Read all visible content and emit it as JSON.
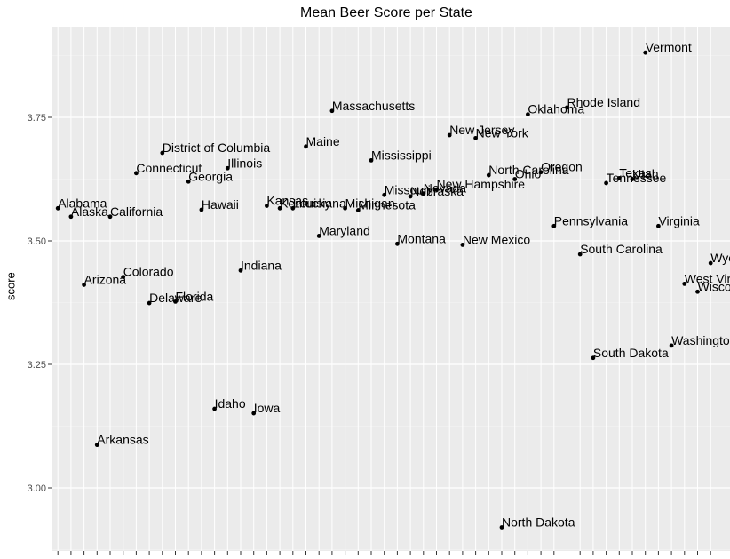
{
  "chart_data": {
    "type": "scatter",
    "title": "Mean Beer Score per State",
    "xlabel": "",
    "ylabel": "score",
    "ylim": [
      2.88,
      3.895
    ],
    "y_ticks": [
      3.0,
      3.25,
      3.5,
      3.75
    ],
    "y_tick_labels": [
      "3.00",
      "3.25",
      "3.50",
      "3.75"
    ],
    "grid": true,
    "background": "#ebebeb",
    "point_color": "#000000",
    "points": [
      {
        "label": "Alabama",
        "x": 1,
        "y": 3.566
      },
      {
        "label": "Alaska",
        "x": 2,
        "y": 3.549
      },
      {
        "label": "Arizona",
        "x": 3,
        "y": 3.411
      },
      {
        "label": "Arkansas",
        "x": 4,
        "y": 3.087
      },
      {
        "label": "California",
        "x": 5,
        "y": 3.549
      },
      {
        "label": "Colorado",
        "x": 6,
        "y": 3.427
      },
      {
        "label": "Connecticut",
        "x": 7,
        "y": 3.637
      },
      {
        "label": "Delaware",
        "x": 8,
        "y": 3.374
      },
      {
        "label": "District of Columbia",
        "x": 9,
        "y": 3.678
      },
      {
        "label": "Florida",
        "x": 10,
        "y": 3.377
      },
      {
        "label": "Georgia",
        "x": 11,
        "y": 3.62
      },
      {
        "label": "Hawaii",
        "x": 12,
        "y": 3.563
      },
      {
        "label": "Idaho",
        "x": 13,
        "y": 3.16
      },
      {
        "label": "Illinois",
        "x": 14,
        "y": 3.647
      },
      {
        "label": "Indiana",
        "x": 15,
        "y": 3.44
      },
      {
        "label": "Iowa",
        "x": 16,
        "y": 3.151
      },
      {
        "label": "Kansas",
        "x": 17,
        "y": 3.571
      },
      {
        "label": "Kentucky",
        "x": 18,
        "y": 3.566
      },
      {
        "label": "Louisiana",
        "x": 19,
        "y": 3.566
      },
      {
        "label": "Maine",
        "x": 20,
        "y": 3.691
      },
      {
        "label": "Maryland",
        "x": 21,
        "y": 3.51
      },
      {
        "label": "Massachusetts",
        "x": 22,
        "y": 3.763
      },
      {
        "label": "Michigan",
        "x": 23,
        "y": 3.566
      },
      {
        "label": "Minnesota",
        "x": 24,
        "y": 3.562
      },
      {
        "label": "Mississippi",
        "x": 25,
        "y": 3.663
      },
      {
        "label": "Missouri",
        "x": 26,
        "y": 3.593
      },
      {
        "label": "Montana",
        "x": 27,
        "y": 3.494
      },
      {
        "label": "Nebraska",
        "x": 28,
        "y": 3.59
      },
      {
        "label": "Nevada",
        "x": 29,
        "y": 3.596
      },
      {
        "label": "New Hampshire",
        "x": 30,
        "y": 3.604
      },
      {
        "label": "New Jersey",
        "x": 31,
        "y": 3.714
      },
      {
        "label": "New Mexico",
        "x": 32,
        "y": 3.492
      },
      {
        "label": "New York",
        "x": 33,
        "y": 3.708
      },
      {
        "label": "North Carolina",
        "x": 34,
        "y": 3.633
      },
      {
        "label": "North Dakota",
        "x": 35,
        "y": 2.92
      },
      {
        "label": "Ohio",
        "x": 36,
        "y": 3.625
      },
      {
        "label": "Oklahoma",
        "x": 37,
        "y": 3.756
      },
      {
        "label": "Oregon",
        "x": 38,
        "y": 3.639
      },
      {
        "label": "Pennsylvania",
        "x": 39,
        "y": 3.53
      },
      {
        "label": "Rhode Island",
        "x": 40,
        "y": 3.77
      },
      {
        "label": "South Carolina",
        "x": 41,
        "y": 3.473
      },
      {
        "label": "South Dakota",
        "x": 42,
        "y": 3.263
      },
      {
        "label": "Tennessee",
        "x": 43,
        "y": 3.617
      },
      {
        "label": "Texas",
        "x": 44,
        "y": 3.627
      },
      {
        "label": "Utah",
        "x": 45,
        "y": 3.625
      },
      {
        "label": "Vermont",
        "x": 46,
        "y": 3.881
      },
      {
        "label": "Virginia",
        "x": 47,
        "y": 3.53
      },
      {
        "label": "Washington",
        "x": 48,
        "y": 3.288
      },
      {
        "label": "West Virginia",
        "x": 49,
        "y": 3.413
      },
      {
        "label": "Wisconsin",
        "x": 50,
        "y": 3.397
      },
      {
        "label": "Wyoming",
        "x": 51,
        "y": 3.455
      }
    ]
  }
}
